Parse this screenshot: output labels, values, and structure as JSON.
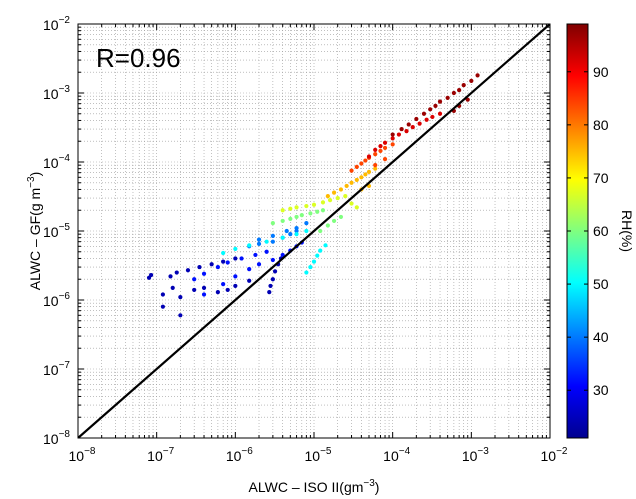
{
  "chart_data": {
    "type": "scatter",
    "title": "",
    "xlabel": "ALWC – ISO II(gm",
    "xlabel_exp": "−3",
    "xlabel_close": ")",
    "ylabel": "ALWC – GF(g m",
    "ylabel_exp": "−3",
    "ylabel_close": ")",
    "xscale": "log",
    "yscale": "log",
    "xlim": [
      1e-08,
      0.01
    ],
    "ylim": [
      1e-08,
      0.01
    ],
    "grid": true,
    "x_ticks": [
      {
        "base": "10",
        "exp": "−8"
      },
      {
        "base": "10",
        "exp": "−7"
      },
      {
        "base": "10",
        "exp": "−6"
      },
      {
        "base": "10",
        "exp": "−5"
      },
      {
        "base": "10",
        "exp": "−4"
      },
      {
        "base": "10",
        "exp": "−3"
      },
      {
        "base": "10",
        "exp": "−2"
      }
    ],
    "y_ticks": [
      {
        "base": "10",
        "exp": "−8"
      },
      {
        "base": "10",
        "exp": "−7"
      },
      {
        "base": "10",
        "exp": "−6"
      },
      {
        "base": "10",
        "exp": "−5"
      },
      {
        "base": "10",
        "exp": "−4"
      },
      {
        "base": "10",
        "exp": "−3"
      },
      {
        "base": "10",
        "exp": "−2"
      }
    ],
    "annotation": "R=0.96",
    "reference_line": {
      "type": "1:1",
      "x": [
        1e-08,
        0.01
      ],
      "y": [
        1e-08,
        0.01
      ],
      "color": "#000000"
    },
    "colorbar": {
      "label": "RH(%)",
      "range": [
        21,
        99
      ],
      "ticks": [
        "30",
        "40",
        "50",
        "60",
        "70",
        "80",
        "90"
      ],
      "tick_values": [
        30,
        40,
        50,
        60,
        70,
        80,
        90
      ],
      "colormap": "jet"
    },
    "series": [
      {
        "color_value": 25,
        "points": [
          [
            8e-08,
            2.1e-06
          ],
          [
            8.5e-08,
            2.3e-06
          ],
          [
            1.2e-07,
            1.2e-06
          ],
          [
            1.5e-07,
            2.2e-06
          ],
          [
            1.8e-07,
            2.5e-06
          ],
          [
            2.5e-07,
            2.7e-06
          ],
          [
            3.5e-07,
            3e-06
          ],
          [
            5e-07,
            3.3e-06
          ],
          [
            7e-07,
            3.6e-06
          ],
          [
            1e-06,
            4e-06
          ],
          [
            1.2e-07,
            8e-07
          ],
          [
            1.6e-07,
            1.5e-06
          ],
          [
            2e-07,
            1.1e-06
          ],
          [
            3e-07,
            1.4e-06
          ],
          [
            4e-07,
            1.5e-06
          ],
          [
            6e-07,
            1.3e-06
          ],
          [
            8e-07,
            1.4e-06
          ],
          [
            1e-06,
            1.6e-06
          ],
          [
            1.5e-06,
            1.9e-06
          ],
          [
            2e-07,
            6e-07
          ],
          [
            2.7e-06,
            1.3e-06
          ],
          [
            2.8e-06,
            1.6e-06
          ],
          [
            3e-06,
            2e-06
          ],
          [
            3.2e-06,
            2.6e-06
          ],
          [
            3.5e-06,
            3.3e-06
          ],
          [
            3.8e-06,
            4e-06
          ]
        ]
      },
      {
        "color_value": 32,
        "points": [
          [
            3e-07,
            2e-06
          ],
          [
            4e-07,
            2.4e-06
          ],
          [
            6e-07,
            3e-06
          ],
          [
            8e-07,
            3.5e-06
          ],
          [
            1.2e-06,
            4e-06
          ],
          [
            1.8e-06,
            4.5e-06
          ],
          [
            2.5e-06,
            5e-06
          ],
          [
            4e-07,
            1.2e-06
          ],
          [
            7e-07,
            1.7e-06
          ],
          [
            1e-06,
            2.2e-06
          ],
          [
            1.5e-06,
            2.8e-06
          ],
          [
            2e-06,
            3.3e-06
          ],
          [
            3e-06,
            3.8e-06
          ],
          [
            4e-06,
            4.5e-06
          ],
          [
            5e-06,
            5.2e-06
          ],
          [
            6e-06,
            6e-06
          ],
          [
            7e-06,
            6.8e-06
          ]
        ]
      },
      {
        "color_value": 40,
        "points": [
          [
            1.5e-06,
            6e-06
          ],
          [
            2e-06,
            6.5e-06
          ],
          [
            3e-06,
            7e-06
          ],
          [
            4e-06,
            8e-06
          ],
          [
            5e-06,
            9e-06
          ],
          [
            6e-06,
            1e-05
          ],
          [
            2e-06,
            7.5e-06
          ],
          [
            3e-06,
            8.5e-06
          ],
          [
            4.5e-06,
            1e-05
          ],
          [
            6e-06,
            1.1e-05
          ],
          [
            8e-06,
            1.3e-05
          ]
        ]
      },
      {
        "color_value": 50,
        "points": [
          [
            7e-07,
            4.8e-06
          ],
          [
            1e-06,
            5.5e-06
          ],
          [
            1.5e-06,
            6.2e-06
          ],
          [
            2.5e-06,
            7e-06
          ],
          [
            4e-06,
            8e-06
          ],
          [
            6e-06,
            9e-06
          ],
          [
            8e-06,
            1e-05
          ],
          [
            8e-06,
            2.5e-06
          ],
          [
            9e-06,
            3e-06
          ],
          [
            1e-05,
            3.6e-06
          ],
          [
            1.1e-05,
            4.4e-06
          ],
          [
            1.2e-05,
            5.2e-06
          ],
          [
            1.4e-05,
            6.2e-06
          ]
        ]
      },
      {
        "color_value": 60,
        "points": [
          [
            3e-06,
            1.3e-05
          ],
          [
            4e-06,
            1.4e-05
          ],
          [
            5e-06,
            1.5e-05
          ],
          [
            6e-06,
            1.6e-05
          ],
          [
            7e-06,
            1.7e-05
          ],
          [
            9e-06,
            1.8e-05
          ],
          [
            1.1e-05,
            1.9e-05
          ],
          [
            1.3e-05,
            2e-05
          ],
          [
            1.2e-05,
            1e-05
          ],
          [
            1.5e-05,
            1.2e-05
          ],
          [
            1.8e-05,
            1.4e-05
          ],
          [
            2.2e-05,
            1.6e-05
          ]
        ]
      },
      {
        "color_value": 67,
        "points": [
          [
            4e-06,
            2e-05
          ],
          [
            5e-06,
            2.1e-05
          ],
          [
            6e-06,
            2.2e-05
          ],
          [
            8e-06,
            2.3e-05
          ],
          [
            1e-05,
            2.4e-05
          ],
          [
            1.3e-05,
            2.6e-05
          ],
          [
            1.6e-05,
            2.8e-05
          ],
          [
            2e-05,
            3e-05
          ],
          [
            2.5e-05,
            3.2e-05
          ],
          [
            3e-05,
            2.5e-05
          ],
          [
            3.5e-05,
            2.2e-05
          ]
        ]
      },
      {
        "color_value": 75,
        "points": [
          [
            1.5e-05,
            3.2e-05
          ],
          [
            1.8e-05,
            3.6e-05
          ],
          [
            2.2e-05,
            4e-05
          ],
          [
            2.6e-05,
            4.5e-05
          ],
          [
            3e-05,
            5e-05
          ],
          [
            3.5e-05,
            5.5e-05
          ],
          [
            4e-05,
            6e-05
          ],
          [
            4.5e-05,
            6.6e-05
          ],
          [
            5e-05,
            7.2e-05
          ],
          [
            6e-05,
            8e-05
          ],
          [
            4e-05,
            4e-05
          ],
          [
            5e-05,
            4.5e-05
          ]
        ]
      },
      {
        "color_value": 84,
        "points": [
          [
            3e-05,
            7.5e-05
          ],
          [
            3.5e-05,
            8.5e-05
          ],
          [
            4e-05,
            9.5e-05
          ],
          [
            4.5e-05,
            0.000105
          ],
          [
            5e-05,
            0.000115
          ],
          [
            6e-05,
            0.00013
          ],
          [
            7e-05,
            0.000145
          ],
          [
            8e-05,
            0.00016
          ],
          [
            0.0001,
            0.00018
          ],
          [
            6e-05,
            9e-05
          ],
          [
            8e-05,
            0.00011
          ]
        ]
      },
      {
        "color_value": 92,
        "points": [
          [
            5e-05,
            0.00012
          ],
          [
            6e-05,
            0.00015
          ],
          [
            7e-05,
            0.00017
          ],
          [
            8e-05,
            0.00019
          ],
          [
            0.0001,
            0.00022
          ],
          [
            0.00012,
            0.00025
          ],
          [
            0.00015,
            0.00028
          ],
          [
            0.00018,
            0.00032
          ],
          [
            0.00022,
            0.00036
          ],
          [
            0.00027,
            0.00041
          ],
          [
            0.00032,
            0.00045
          ],
          [
            0.0004,
            0.0005
          ]
        ]
      },
      {
        "color_value": 97,
        "points": [
          [
            0.0001,
            0.00025
          ],
          [
            0.00013,
            0.0003
          ],
          [
            0.00016,
            0.00035
          ],
          [
            0.0002,
            0.00042
          ],
          [
            0.00025,
            0.0005
          ],
          [
            0.0003,
            0.00058
          ],
          [
            0.00035,
            0.00065
          ],
          [
            0.0004,
            0.00075
          ],
          [
            0.0005,
            0.00085
          ],
          [
            0.0006,
            0.001
          ],
          [
            0.0007,
            0.0011
          ],
          [
            0.0008,
            0.0013
          ],
          [
            0.001,
            0.0015
          ],
          [
            0.0012,
            0.0018
          ],
          [
            0.0006,
            0.00055
          ],
          [
            0.0007,
            0.00065
          ],
          [
            0.0009,
            0.0008
          ]
        ]
      }
    ]
  }
}
